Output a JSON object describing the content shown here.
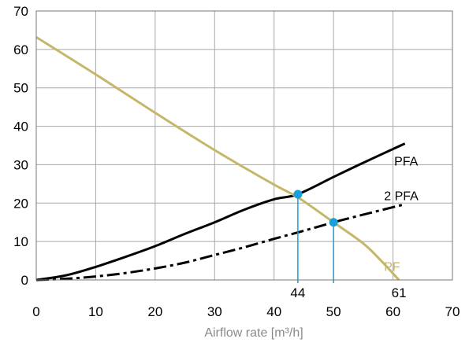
{
  "chart_data": {
    "type": "line",
    "xlabel": "Airflow rate [m³/h]",
    "ylabel": "",
    "title": "",
    "xlim": [
      0,
      70
    ],
    "ylim": [
      0,
      70
    ],
    "x_ticks": [
      0,
      10,
      20,
      30,
      40,
      50,
      60,
      70
    ],
    "y_ticks": [
      0,
      10,
      20,
      30,
      40,
      50,
      60,
      70
    ],
    "grid": true,
    "series": [
      {
        "name": "PFA",
        "color": "#000000",
        "style": "solid",
        "x": [
          0,
          5,
          10,
          15,
          20,
          25,
          30,
          35,
          40,
          44,
          50,
          55,
          62
        ],
        "y": [
          0,
          1.2,
          3.4,
          6.0,
          8.8,
          12.0,
          15.0,
          18.3,
          21.0,
          22.3,
          26.8,
          30.5,
          35.5
        ]
      },
      {
        "name": "2 PFA",
        "color": "#000000",
        "style": "dashdot",
        "x": [
          0,
          5,
          10,
          15,
          20,
          25,
          30,
          35,
          40,
          45,
          50,
          55,
          62
        ],
        "y": [
          0,
          0.3,
          0.9,
          1.8,
          3.0,
          4.5,
          6.5,
          8.5,
          10.7,
          12.8,
          15.0,
          17.0,
          19.7
        ]
      },
      {
        "name": "PF",
        "color": "#c6b66a",
        "style": "solid",
        "x": [
          0,
          10,
          20,
          30,
          40,
          44,
          50,
          55,
          58,
          61
        ],
        "y": [
          63.2,
          53.5,
          43.5,
          33.8,
          24.8,
          21.5,
          15.0,
          9.5,
          5.0,
          0
        ]
      }
    ],
    "points": [
      {
        "x": 44,
        "y": 22.3,
        "color": "#1a9fd9"
      },
      {
        "x": 50,
        "y": 15.0,
        "color": "#1a9fd9"
      }
    ],
    "drop_lines": [
      {
        "x": 44,
        "label": "44",
        "color": "#1a9fd9"
      },
      {
        "x": 50,
        "label": "",
        "color": "#1a9fd9"
      },
      {
        "x": 61,
        "label": "61",
        "color": "#1a9fd9"
      }
    ]
  }
}
